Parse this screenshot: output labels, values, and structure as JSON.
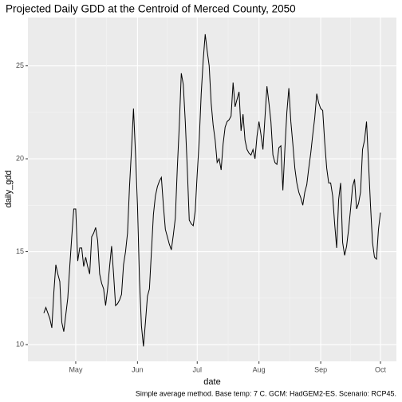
{
  "chart_data": {
    "type": "line",
    "title": "Projected Daily GDD at the Centroid of Merced County, 2050",
    "x_label": "date",
    "y_label": "daily_gdd",
    "caption": "Simple average method. Base temp: 7 C. GCM: HadGEM2-ES. Scenario: RCP45.",
    "categories": [
      null,
      null,
      null,
      null,
      null,
      null,
      null,
      null,
      null,
      null,
      null,
      null,
      null,
      null,
      null,
      null,
      "May",
      null,
      null,
      null,
      null,
      null,
      null,
      null,
      null,
      null,
      null,
      null,
      null,
      null,
      null,
      null,
      null,
      null,
      null,
      null,
      null,
      null,
      null,
      null,
      null,
      null,
      null,
      null,
      null,
      null,
      null,
      "Jun",
      null,
      null,
      null,
      null,
      null,
      null,
      null,
      null,
      null,
      null,
      null,
      null,
      null,
      null,
      null,
      null,
      null,
      null,
      null,
      null,
      null,
      null,
      null,
      null,
      null,
      null,
      null,
      null,
      null,
      "Jul",
      null,
      null,
      null,
      null,
      null,
      null,
      null,
      null,
      null,
      null,
      null,
      null,
      null,
      null,
      null,
      null,
      null,
      null,
      null,
      null,
      null,
      null,
      null,
      null,
      null,
      null,
      null,
      null,
      null,
      null,
      "Aug",
      null,
      null,
      null,
      null,
      null,
      null,
      null,
      null,
      null,
      null,
      null,
      null,
      null,
      null,
      null,
      null,
      null,
      null,
      null,
      null,
      null,
      null,
      null,
      null,
      null,
      null,
      null,
      null,
      null,
      null,
      "Sep",
      null,
      null,
      null,
      null,
      null,
      null,
      null,
      null,
      null,
      null,
      null,
      null,
      null,
      null,
      null,
      null,
      null,
      null,
      null,
      null,
      null,
      null,
      null,
      null,
      null,
      null,
      null,
      null,
      null,
      "Oct"
    ],
    "values": [
      11.7,
      12.0,
      11.7,
      11.4,
      10.9,
      12.8,
      14.3,
      13.8,
      13.4,
      11.2,
      10.7,
      11.6,
      12.5,
      14.2,
      15.8,
      17.3,
      17.3,
      14.5,
      15.2,
      15.2,
      14.2,
      14.7,
      14.2,
      13.8,
      15.8,
      16.0,
      16.3,
      15.6,
      13.8,
      13.3,
      13.0,
      12.1,
      13.0,
      14.2,
      15.3,
      13.8,
      12.1,
      12.2,
      12.4,
      12.7,
      14.3,
      15.0,
      16.0,
      18.5,
      20.5,
      22.7,
      20.3,
      17.5,
      13.5,
      11.0,
      9.9,
      11.2,
      12.6,
      13.0,
      15.0,
      17.0,
      18.0,
      18.5,
      18.8,
      19.0,
      17.5,
      16.2,
      15.8,
      15.4,
      15.1,
      15.9,
      16.8,
      19.5,
      21.8,
      24.6,
      24.0,
      22.0,
      19.5,
      16.7,
      16.5,
      16.4,
      17.2,
      19.2,
      21.0,
      23.5,
      25.3,
      26.7,
      25.8,
      25.0,
      23.0,
      21.8,
      21.0,
      19.8,
      20.0,
      19.4,
      20.8,
      21.7,
      22.0,
      22.1,
      22.3,
      24.1,
      22.8,
      23.2,
      23.6,
      21.5,
      22.4,
      21.0,
      20.5,
      20.3,
      20.2,
      20.5,
      20.0,
      21.2,
      22.0,
      21.3,
      20.5,
      22.2,
      23.9,
      23.0,
      22.0,
      20.2,
      19.8,
      19.7,
      20.6,
      20.7,
      18.3,
      20.5,
      22.5,
      23.8,
      22.0,
      20.8,
      19.5,
      18.7,
      18.2,
      17.9,
      17.5,
      18.2,
      18.6,
      19.5,
      20.3,
      21.3,
      22.2,
      23.5,
      23.0,
      22.7,
      22.6,
      20.9,
      19.5,
      18.7,
      18.7,
      18.0,
      16.5,
      15.2,
      17.8,
      18.7,
      15.5,
      14.8,
      15.3,
      16.2,
      17.3,
      18.5,
      18.9,
      17.3,
      17.6,
      18.2,
      20.5,
      21.0,
      22.0,
      19.8,
      17.5,
      15.5,
      14.7,
      14.6,
      16.2,
      17.1
    ],
    "color": "#000000",
    "ylim": [
      9.1,
      27.6
    ],
    "yticks": [
      10,
      15,
      20,
      25
    ],
    "grid": true
  }
}
